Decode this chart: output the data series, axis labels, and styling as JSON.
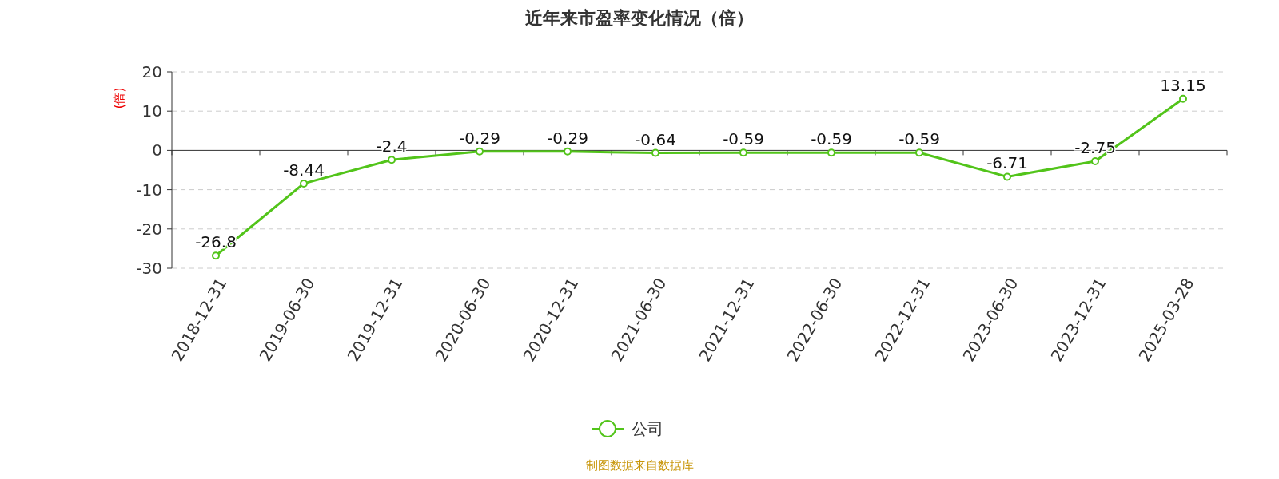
{
  "chart_data": {
    "type": "line",
    "title": "近年来市盈率变化情况（倍）",
    "ylabel": "(倍)",
    "categories": [
      "2018-12-31",
      "2019-06-30",
      "2019-12-31",
      "2020-06-30",
      "2020-12-31",
      "2021-06-30",
      "2021-12-31",
      "2022-06-30",
      "2022-12-31",
      "2023-06-30",
      "2023-12-31",
      "2025-03-28"
    ],
    "series": [
      {
        "name": "公司",
        "color": "#52c41a",
        "values": [
          -26.8,
          -8.44,
          -2.4,
          -0.29,
          -0.29,
          -0.64,
          -0.59,
          -0.59,
          -0.59,
          -6.71,
          -2.75,
          13.15
        ]
      }
    ],
    "ylim": [
      -30,
      20
    ],
    "yticks": [
      -30,
      -20,
      -10,
      0,
      10,
      20
    ],
    "grid": "y",
    "legend": "bottom",
    "marker": "circle",
    "line_style": "solid",
    "data_labels": true,
    "annotations": [
      "制图数据来自数据库"
    ]
  }
}
